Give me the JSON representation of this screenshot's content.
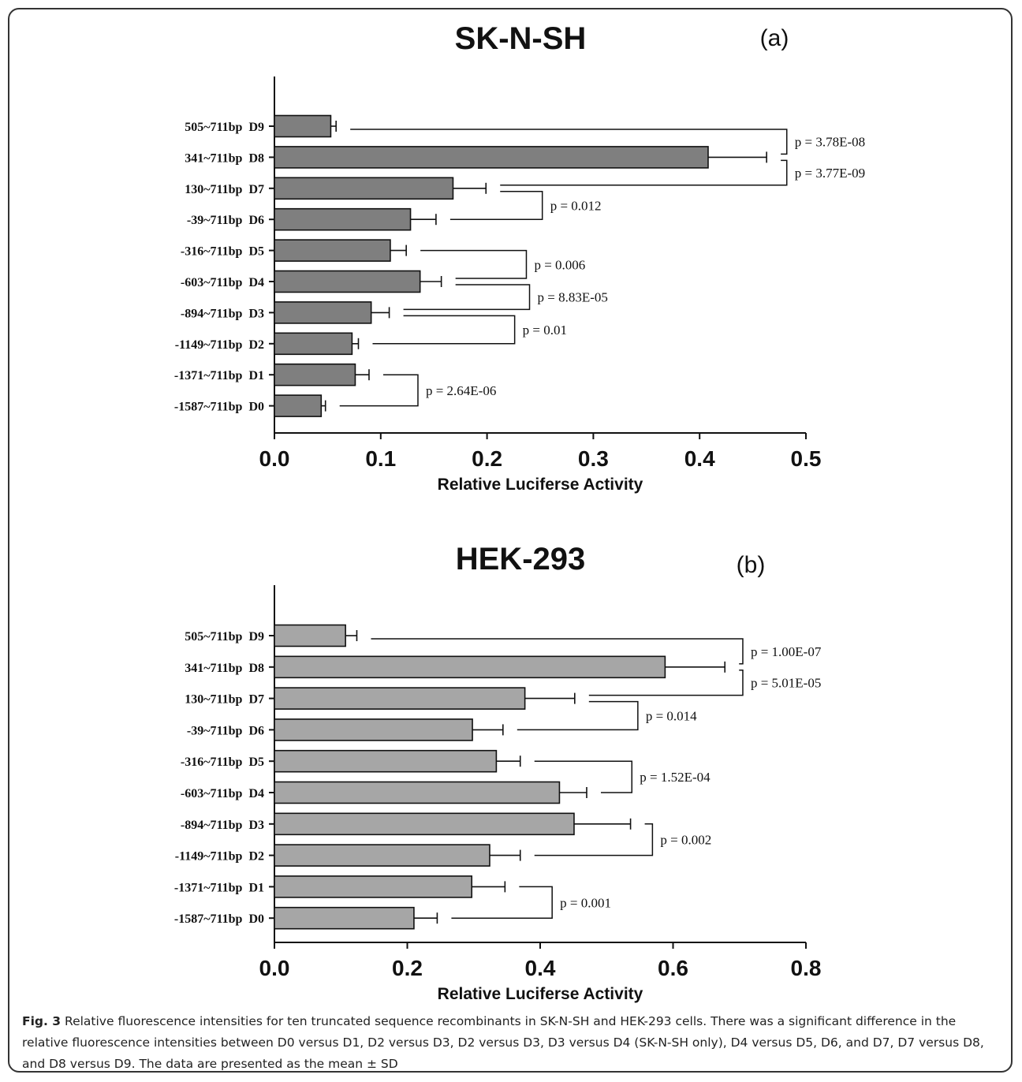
{
  "chart_data": [
    {
      "type": "bar",
      "orientation": "horizontal",
      "title": "SK-N-SH",
      "panel_label": "(a)",
      "xlabel": "Relative Luciferse Activity",
      "xlim": [
        0,
        0.5
      ],
      "xticks": [
        0.0,
        0.1,
        0.2,
        0.3,
        0.4,
        0.5
      ],
      "xtick_labels": [
        "0.0",
        "0.1",
        "0.2",
        "0.3",
        "0.4",
        "0.5"
      ],
      "bar_color": "#7f7f7f",
      "categories": [
        "505~711bp  D9",
        "341~711bp  D8",
        "130~711bp  D7",
        "-39~711bp  D6",
        "-316~711bp  D5",
        "-603~711bp  D4",
        "-894~711bp  D3",
        "-1149~711bp  D2",
        "-1371~711bp  D1",
        "-1587~711bp  D0"
      ],
      "values": [
        0.053,
        0.408,
        0.168,
        0.128,
        0.109,
        0.137,
        0.091,
        0.073,
        0.076,
        0.044
      ],
      "errors": [
        0.005,
        0.055,
        0.031,
        0.024,
        0.015,
        0.02,
        0.017,
        0.006,
        0.013,
        0.004
      ],
      "comparisons": [
        {
          "a": 0,
          "b": 1,
          "label": "p = 3.78E-08",
          "x": 0.482
        },
        {
          "a": 1,
          "b": 2,
          "label": "p = 3.77E-09",
          "x": 0.482
        },
        {
          "a": 2,
          "b": 3,
          "label": "p = 0.012",
          "x": 0.252
        },
        {
          "a": 4,
          "b": 5,
          "label": "p = 0.006",
          "x": 0.237
        },
        {
          "a": 5,
          "b": 6,
          "label": "p = 8.83E-05",
          "x": 0.24
        },
        {
          "a": 6,
          "b": 7,
          "label": "p = 0.01",
          "x": 0.226
        },
        {
          "a": 8,
          "b": 9,
          "label": "p = 2.64E-06",
          "x": 0.135
        }
      ]
    },
    {
      "type": "bar",
      "orientation": "horizontal",
      "title": "HEK-293",
      "panel_label": "(b)",
      "xlabel": "Relative Luciferse Activity",
      "xlim": [
        0,
        0.8
      ],
      "xticks": [
        0.0,
        0.2,
        0.4,
        0.6,
        0.8
      ],
      "xtick_labels": [
        "0.0",
        "0.2",
        "0.4",
        "0.6",
        "0.8"
      ],
      "bar_color": "#a6a6a6",
      "categories": [
        "505~711bp  D9",
        "341~711bp  D8",
        "130~711bp  D7",
        "-39~711bp  D6",
        "-316~711bp  D5",
        "-603~711bp  D4",
        "-894~711bp  D3",
        "-1149~711bp  D2",
        "-1371~711bp  D1",
        "-1587~711bp  D0"
      ],
      "values": [
        0.107,
        0.588,
        0.377,
        0.298,
        0.334,
        0.429,
        0.451,
        0.324,
        0.297,
        0.21
      ],
      "errors": [
        0.017,
        0.09,
        0.075,
        0.046,
        0.036,
        0.041,
        0.085,
        0.046,
        0.05,
        0.035
      ],
      "comparisons": [
        {
          "a": 0,
          "b": 1,
          "label": "p = 1.00E-07",
          "x": 0.705
        },
        {
          "a": 1,
          "b": 2,
          "label": "p = 5.01E-05",
          "x": 0.705
        },
        {
          "a": 2,
          "b": 3,
          "label": "p = 0.014",
          "x": 0.547
        },
        {
          "a": 4,
          "b": 5,
          "label": "p = 1.52E-04",
          "x": 0.538
        },
        {
          "a": 6,
          "b": 7,
          "label": "p = 0.002",
          "x": 0.569
        },
        {
          "a": 8,
          "b": 9,
          "label": "p = 0.001",
          "x": 0.418
        }
      ]
    }
  ],
  "caption": {
    "label": "Fig. 3",
    "text": " Relative fluorescence intensities for ten truncated sequence recombinants in SK-N-SH and HEK-293 cells. There was a significant difference in the relative fluorescence intensities between D0 versus D1, D2 versus D3, D2 versus D3, D3 versus D4 (SK-N-SH only), D4 versus D5, D6, and D7, D7 versus D8, and D8 versus D9. The data are presented as the mean ± SD"
  }
}
